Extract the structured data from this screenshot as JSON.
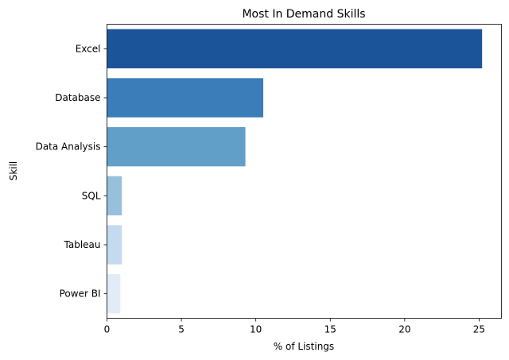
{
  "chart_data": {
    "type": "bar",
    "orientation": "horizontal",
    "title": "Most In Demand Skills",
    "xlabel": "% of Listings",
    "ylabel": "Skill",
    "categories": [
      "Excel",
      "Database",
      "Data Analysis",
      "SQL",
      "Tableau",
      "Power BI"
    ],
    "values": [
      25.2,
      10.5,
      9.3,
      1.0,
      1.0,
      0.9
    ],
    "xlim": [
      0,
      26.5
    ],
    "xticks": [
      0,
      5,
      10,
      15,
      20,
      25
    ],
    "grid": false,
    "colors": [
      "#1c549a",
      "#3a7db8",
      "#619fc9",
      "#97c0dc",
      "#c4daee",
      "#e2ecf7"
    ]
  }
}
